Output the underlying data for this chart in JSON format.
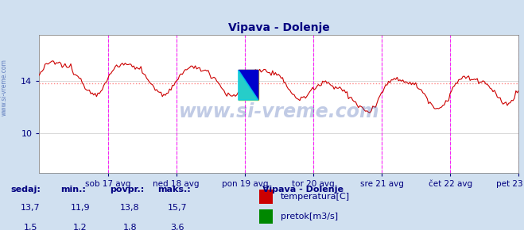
{
  "title": "Vipava - Dolenje",
  "title_color": "#000080",
  "bg_color": "#d0e0f0",
  "plot_bg_color": "#ffffff",
  "grid_color": "#c8c8c8",
  "watermark": "www.si-vreme.com",
  "watermark_color": "#3355aa",
  "xlabel_color": "#000080",
  "ylabel_color": "#000080",
  "x_tick_labels": [
    "sob 17 avg",
    "ned 18 avg",
    "pon 19 avg",
    "tor 20 avg",
    "sre 21 avg",
    "čet 22 avg",
    "pet 23 avg"
  ],
  "y_ticks": [
    10,
    14
  ],
  "ylim": [
    7.0,
    17.5
  ],
  "n_points": 336,
  "temp_color": "#cc0000",
  "flow_color": "#008800",
  "avg_temp_color": "#ff8888",
  "avg_flow_color": "#88cc88",
  "avg_temp": 13.8,
  "avg_flow": 1.8,
  "legend_title": "Vipava - Dolenje",
  "legend_title_color": "#000080",
  "legend_items": [
    {
      "label": "temperatura[C]",
      "color": "#cc0000"
    },
    {
      "label": "pretok[m3/s]",
      "color": "#008800"
    }
  ],
  "table_headers": [
    "sedaj:",
    "min.:",
    "povpr.:",
    "maks.:"
  ],
  "table_rows": [
    {
      "sedaj": "13,7",
      "min": "11,9",
      "povpr": "13,8",
      "maks": "15,7"
    },
    {
      "sedaj": "1,5",
      "min": "1,2",
      "povpr": "1,8",
      "maks": "3,6"
    }
  ],
  "table_color": "#000080",
  "vline_color": "#ff00ff",
  "day_ticks": [
    1,
    2,
    3,
    4,
    5,
    6,
    7
  ],
  "xlim": [
    0,
    7
  ]
}
